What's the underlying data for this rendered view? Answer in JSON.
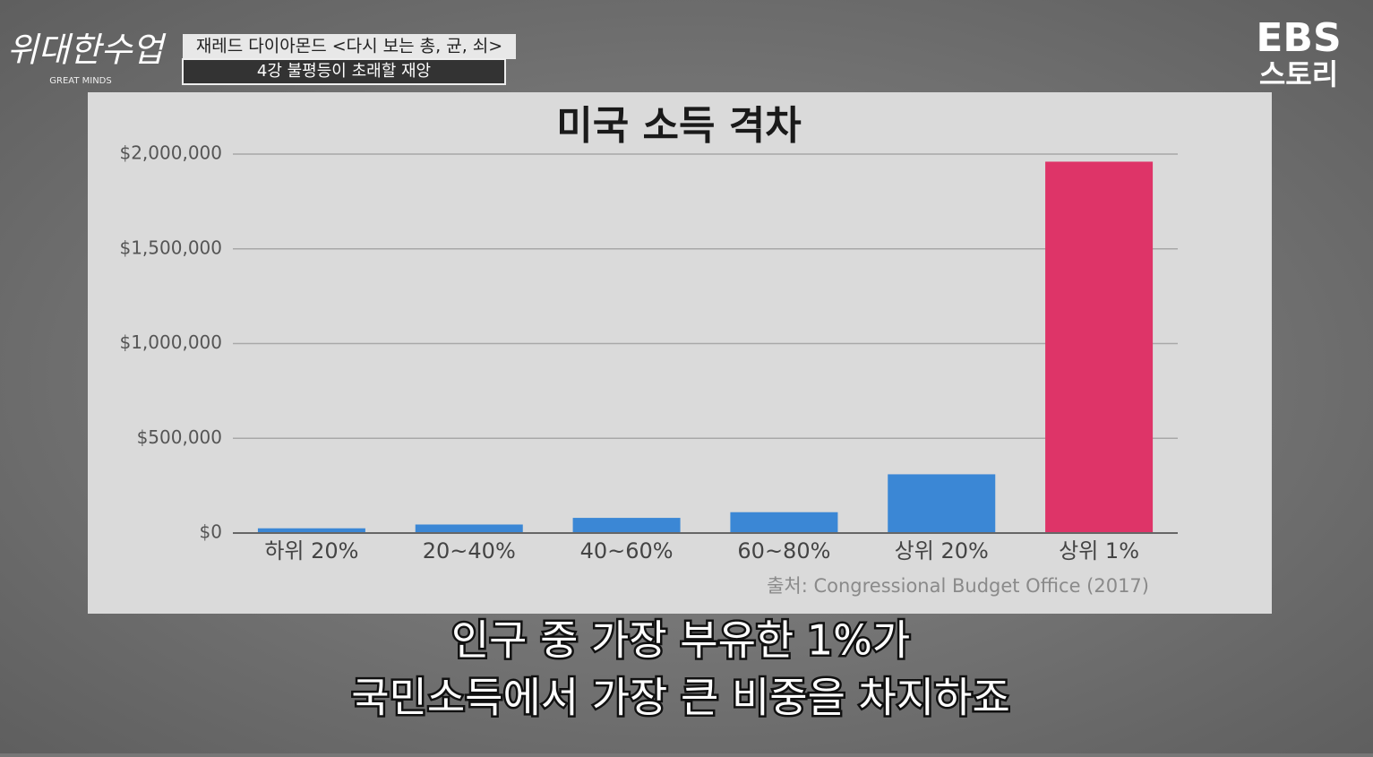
{
  "broadcast": {
    "logo": "위대한수업",
    "logo_subtitle": "GREAT MINDS",
    "program_title": "재레드 다이아몬드 <다시 보는 총, 균, 쇠>",
    "episode": "4강 불평등이 초래할 재앙",
    "channel_logo": "EBS",
    "channel_subtitle": "스토리"
  },
  "chart_data": {
    "type": "bar",
    "title": "미국 소득 격차",
    "categories": [
      "하위 20%",
      "20~40%",
      "40~60%",
      "60~80%",
      "상위 20%",
      "상위 1%"
    ],
    "values": [
      25000,
      45000,
      80000,
      110000,
      310000,
      1960000
    ],
    "colors": [
      "#3b87d5",
      "#3b87d5",
      "#3b87d5",
      "#3b87d5",
      "#3b87d5",
      "#de3468"
    ],
    "ylim": [
      0,
      2000000
    ],
    "yticks": [
      {
        "value": 0,
        "label": "$0"
      },
      {
        "value": 500000,
        "label": "$500,000"
      },
      {
        "value": 1000000,
        "label": "$1,000,000"
      },
      {
        "value": 1500000,
        "label": "$1,500,000"
      },
      {
        "value": 2000000,
        "label": "$2,000,000"
      }
    ],
    "grid": true,
    "source": "출처: Congressional Budget Office (2017)"
  },
  "subtitles": [
    "인구 중 가장 부유한 1%가",
    "국민소득에서 가장 큰 비중을 차지하죠"
  ]
}
